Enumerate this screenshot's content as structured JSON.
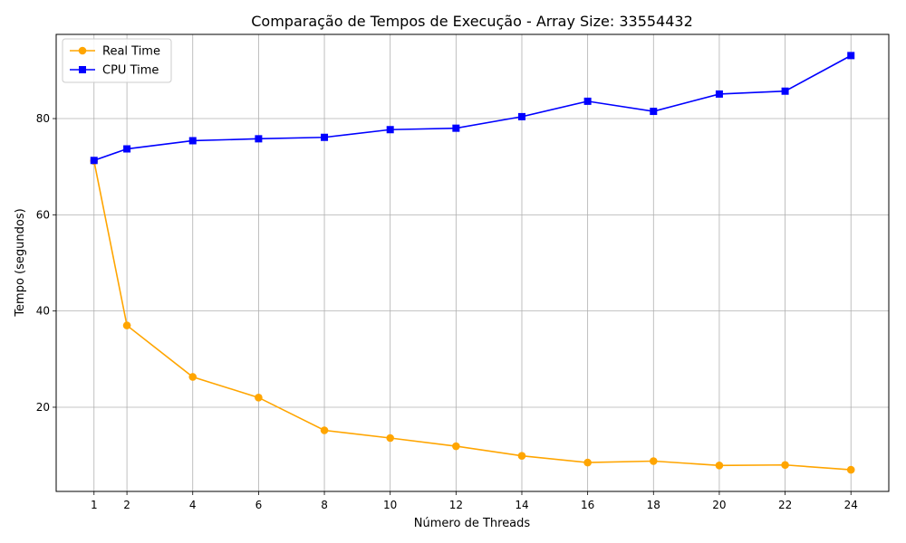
{
  "chart_data": {
    "type": "line",
    "title": "Comparação de Tempos de Execução - Array Size: 33554432",
    "xlabel": "Número de Threads",
    "ylabel": "Tempo (segundos)",
    "x": [
      1,
      2,
      4,
      6,
      8,
      10,
      12,
      14,
      16,
      18,
      20,
      22,
      24
    ],
    "xticks": [
      1,
      2,
      4,
      6,
      8,
      10,
      12,
      14,
      16,
      18,
      20,
      22,
      24
    ],
    "yticks": [
      20,
      40,
      60,
      80
    ],
    "xlim": [
      -0.15,
      25.15
    ],
    "ylim": [
      2.5,
      97.5
    ],
    "grid": true,
    "legend_position": "top-left",
    "series": [
      {
        "name": "Real Time",
        "color": "#ffa500",
        "marker": "circle",
        "values": [
          71.2,
          37.0,
          26.3,
          22.0,
          15.2,
          13.6,
          11.9,
          9.9,
          8.5,
          8.8,
          7.9,
          8.0,
          7.0
        ]
      },
      {
        "name": "CPU Time",
        "color": "#0000ff",
        "marker": "square",
        "values": [
          71.3,
          73.7,
          75.4,
          75.8,
          76.1,
          77.7,
          78.0,
          80.4,
          83.6,
          81.5,
          85.1,
          85.7,
          93.1
        ]
      }
    ]
  }
}
